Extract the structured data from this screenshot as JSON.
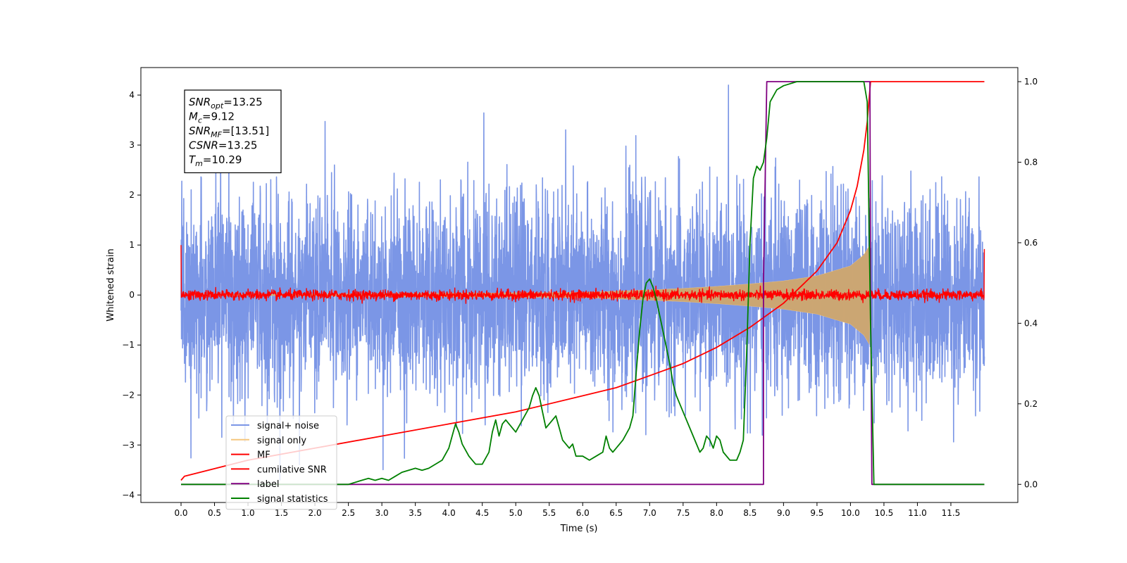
{
  "chart_data": {
    "type": "line",
    "xlabel": "Time (s)",
    "ylabel_left": "Whitened strain",
    "ylabel_right": "",
    "xlim": [
      -0.6,
      12.5
    ],
    "ylim_left": [
      -4.15,
      4.55
    ],
    "ylim_right": [
      -0.045,
      1.035
    ],
    "xticks": [
      0.0,
      0.5,
      1.0,
      1.5,
      2.0,
      2.5,
      3.0,
      3.5,
      4.0,
      4.5,
      5.0,
      5.5,
      6.0,
      6.5,
      7.0,
      7.5,
      8.0,
      8.5,
      9.0,
      9.5,
      10.0,
      10.5,
      11.0,
      11.5
    ],
    "xtick_labels": [
      "0.0",
      "0.5",
      "1.0",
      "1.5",
      "2.0",
      "2.5",
      "3.0",
      "3.5",
      "4.0",
      "4.5",
      "5.0",
      "5.5",
      "6.0",
      "6.5",
      "7.0",
      "7.5",
      "8.0",
      "8.5",
      "9.0",
      "9.5",
      "10.0",
      "10.5",
      "11.0",
      "11.5"
    ],
    "yticks_left": [
      -4,
      -3,
      -2,
      -1,
      0,
      1,
      2,
      3,
      4
    ],
    "ytick_labels_left": [
      "−4",
      "−3",
      "−2",
      "−1",
      "0",
      "1",
      "2",
      "3",
      "4"
    ],
    "yticks_right": [
      0.0,
      0.2,
      0.4,
      0.6,
      0.8,
      1.0
    ],
    "ytick_labels_right": [
      "0.0",
      "0.2",
      "0.4",
      "0.6",
      "0.8",
      "1.0"
    ],
    "grid": false,
    "legend_position": "lower-left",
    "annotation": {
      "position": "top-left",
      "lines": [
        {
          "base": "SNR",
          "sub": "opt",
          "value": "=13.25"
        },
        {
          "base": "M",
          "sub": "c",
          "value": "=9.12"
        },
        {
          "base": "SNR",
          "sub": "MF",
          "value": "=[13.51]"
        },
        {
          "base": "CSNR",
          "sub": "",
          "value": "=13.25"
        },
        {
          "base": "T",
          "sub": "m",
          "value": "=10.29"
        }
      ]
    },
    "series": [
      {
        "name": "signal+ noise",
        "color": "#7b96e6",
        "axis": "left",
        "kind": "noise",
        "x_range": [
          0.0,
          12.0
        ],
        "amplitude_std": 1.0,
        "y_range": [
          -3.7,
          4.2
        ]
      },
      {
        "name": "signal only",
        "color": "#f5c77e",
        "axis": "left",
        "kind": "chirp-envelope",
        "envelope": {
          "x": [
            0.0,
            6.0,
            7.0,
            7.5,
            8.0,
            8.5,
            9.0,
            9.5,
            10.0,
            10.2,
            10.29,
            10.3,
            12.0
          ],
          "y": [
            0.0,
            0.05,
            0.1,
            0.13,
            0.17,
            0.22,
            0.28,
            0.38,
            0.58,
            0.8,
            1.0,
            0.0,
            0.0
          ]
        }
      },
      {
        "name": "MF",
        "color": "#ff0000",
        "axis": "left",
        "kind": "noise",
        "x_range": [
          0.0,
          12.0
        ],
        "amplitude_std": 0.05,
        "edges": {
          "start": 1.0,
          "end": 0.92
        }
      },
      {
        "name": "cumilative SNR",
        "color": "#ff0000",
        "axis": "right",
        "x": [
          0.0,
          0.05,
          1.0,
          2.0,
          3.0,
          4.0,
          5.0,
          6.0,
          6.5,
          7.0,
          7.5,
          8.0,
          8.5,
          9.0,
          9.5,
          9.8,
          10.0,
          10.1,
          10.2,
          10.25,
          10.3,
          12.0
        ],
        "y": [
          0.01,
          0.02,
          0.06,
          0.09,
          0.12,
          0.15,
          0.18,
          0.22,
          0.24,
          0.27,
          0.3,
          0.34,
          0.39,
          0.45,
          0.53,
          0.6,
          0.68,
          0.74,
          0.83,
          0.9,
          1.0,
          1.0
        ]
      },
      {
        "name": "label",
        "color": "#800080",
        "axis": "right",
        "x": [
          0.0,
          8.7,
          8.7,
          8.75,
          10.29,
          10.3,
          10.32,
          12.0
        ],
        "y": [
          0.0,
          0.0,
          0.5,
          1.0,
          1.0,
          0.5,
          0.0,
          0.0
        ]
      },
      {
        "name": "signal statistics",
        "color": "#008000",
        "axis": "right",
        "x": [
          0.0,
          2.5,
          2.7,
          2.8,
          2.9,
          3.0,
          3.1,
          3.2,
          3.3,
          3.5,
          3.6,
          3.7,
          3.8,
          3.9,
          4.0,
          4.05,
          4.1,
          4.15,
          4.2,
          4.3,
          4.4,
          4.5,
          4.6,
          4.65,
          4.7,
          4.75,
          4.8,
          4.85,
          4.9,
          5.0,
          5.1,
          5.2,
          5.25,
          5.3,
          5.35,
          5.4,
          5.45,
          5.5,
          5.6,
          5.65,
          5.7,
          5.8,
          5.85,
          5.9,
          6.0,
          6.1,
          6.2,
          6.3,
          6.35,
          6.4,
          6.45,
          6.5,
          6.6,
          6.7,
          6.75,
          6.8,
          6.85,
          6.9,
          6.95,
          7.0,
          7.05,
          7.1,
          7.15,
          7.2,
          7.3,
          7.35,
          7.4,
          7.5,
          7.6,
          7.7,
          7.75,
          7.8,
          7.85,
          7.9,
          7.95,
          8.0,
          8.05,
          8.1,
          8.2,
          8.3,
          8.35,
          8.4,
          8.45,
          8.5,
          8.55,
          8.6,
          8.65,
          8.7,
          8.75,
          8.8,
          8.9,
          9.0,
          9.2,
          9.5,
          9.8,
          10.0,
          10.2,
          10.25,
          10.3,
          10.35,
          12.0
        ],
        "y": [
          0.0,
          0.0,
          0.01,
          0.015,
          0.01,
          0.015,
          0.01,
          0.02,
          0.03,
          0.04,
          0.035,
          0.04,
          0.05,
          0.06,
          0.09,
          0.12,
          0.15,
          0.13,
          0.1,
          0.07,
          0.05,
          0.05,
          0.08,
          0.13,
          0.16,
          0.12,
          0.15,
          0.16,
          0.15,
          0.13,
          0.16,
          0.19,
          0.22,
          0.24,
          0.22,
          0.18,
          0.14,
          0.15,
          0.17,
          0.14,
          0.11,
          0.09,
          0.1,
          0.07,
          0.07,
          0.06,
          0.07,
          0.08,
          0.12,
          0.09,
          0.08,
          0.09,
          0.11,
          0.14,
          0.17,
          0.28,
          0.38,
          0.46,
          0.5,
          0.51,
          0.49,
          0.46,
          0.42,
          0.38,
          0.3,
          0.25,
          0.22,
          0.18,
          0.14,
          0.1,
          0.08,
          0.09,
          0.12,
          0.11,
          0.09,
          0.12,
          0.11,
          0.08,
          0.06,
          0.06,
          0.08,
          0.11,
          0.33,
          0.6,
          0.76,
          0.79,
          0.78,
          0.8,
          0.86,
          0.95,
          0.98,
          0.99,
          1.0,
          1.0,
          1.0,
          1.0,
          1.0,
          0.95,
          0.4,
          0.0,
          0.0
        ]
      }
    ]
  }
}
